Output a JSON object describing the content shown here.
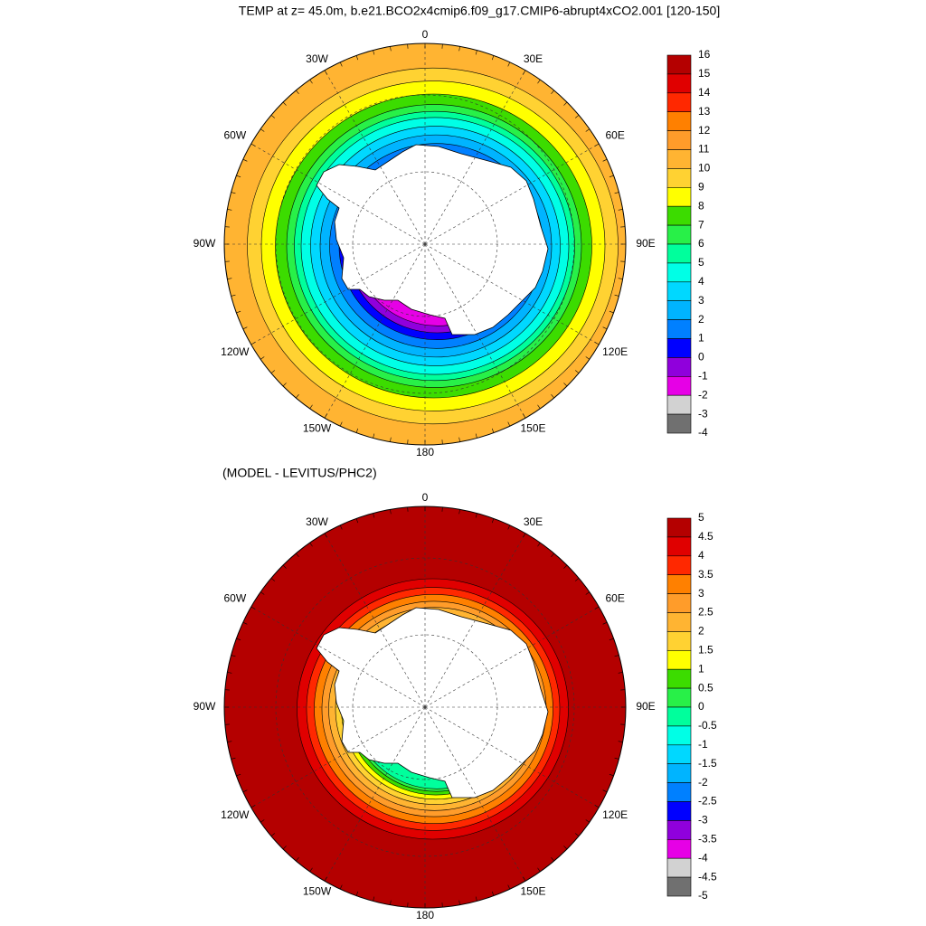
{
  "title": "TEMP at z=  45.0m, b.e21.BCO2x4cmip6.f09_g17.CMIP6-abrupt4xCO2.001 [120-150]",
  "panels": [
    {
      "longitude_labels": [
        "0",
        "30E",
        "60E",
        "90E",
        "120E",
        "150E",
        "180",
        "150W",
        "120W",
        "90W",
        "60W",
        "30W"
      ],
      "colorbar": {
        "labels": [
          "16",
          "15",
          "14",
          "13",
          "12",
          "11",
          "10",
          "9",
          "8",
          "7",
          "6",
          "5",
          "4",
          "3",
          "2",
          "1",
          "0",
          "-1",
          "-2",
          "-3",
          "-4"
        ],
        "colors": [
          "#b40000",
          "#e00000",
          "#ff2800",
          "#ff8000",
          "#ff9c2a",
          "#ffb432",
          "#ffd232",
          "#ffff00",
          "#3cdc00",
          "#28f048",
          "#00ff9c",
          "#00ffe6",
          "#00d8ff",
          "#00b4ff",
          "#0080ff",
          "#0000ff",
          "#9000dc",
          "#e600e6",
          "#d2d2d2",
          "#707070"
        ]
      }
    },
    {
      "title": "(MODEL - LEVITUS/PHC2)",
      "longitude_labels": [
        "0",
        "30E",
        "60E",
        "90E",
        "120E",
        "150E",
        "180",
        "150W",
        "120W",
        "90W",
        "60W",
        "30W"
      ],
      "colorbar": {
        "labels": [
          "5",
          "4.5",
          "4",
          "3.5",
          "3",
          "2.5",
          "2",
          "1.5",
          "1",
          "0.5",
          "0",
          "-0.5",
          "-1",
          "-1.5",
          "-2",
          "-2.5",
          "-3",
          "-3.5",
          "-4",
          "-4.5",
          "-5"
        ],
        "colors": [
          "#b40000",
          "#e00000",
          "#ff2800",
          "#ff8000",
          "#ff9c2a",
          "#ffb432",
          "#ffd232",
          "#ffff00",
          "#3cdc00",
          "#28f048",
          "#00ff9c",
          "#00ffe6",
          "#00d8ff",
          "#00b4ff",
          "#0080ff",
          "#0000ff",
          "#9000dc",
          "#e600e6",
          "#d2d2d2",
          "#707070"
        ]
      }
    }
  ]
}
